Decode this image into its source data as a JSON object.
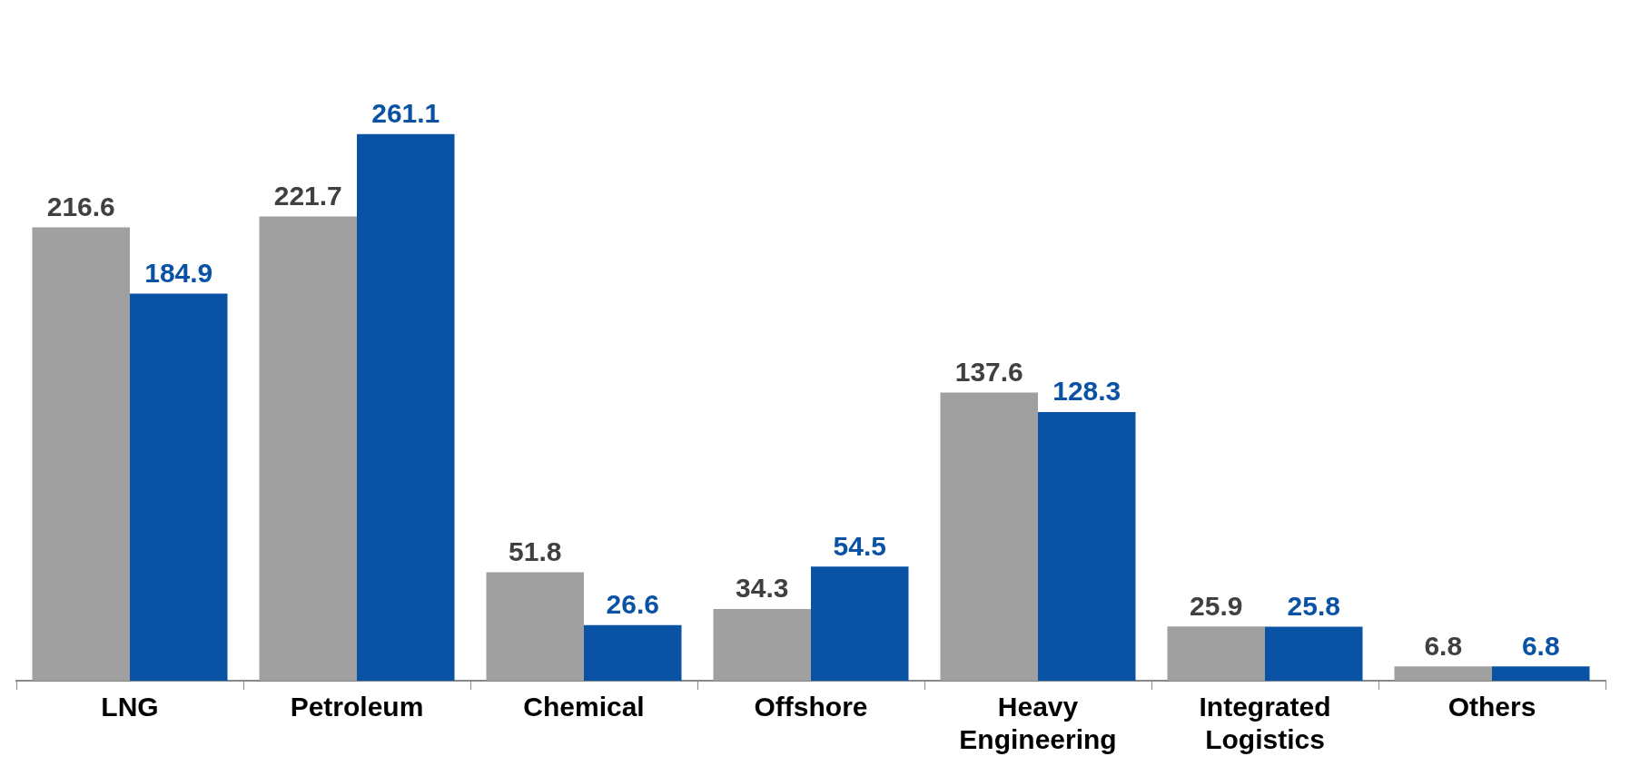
{
  "chart_data": {
    "type": "bar",
    "categories": [
      "LNG",
      "Petroleum",
      "Chemical",
      "Offshore",
      "Heavy Engineering",
      "Integrated Logistics",
      "Others"
    ],
    "series": [
      {
        "color": "#a0a0a0",
        "values": [
          216.6,
          221.7,
          51.8,
          34.3,
          137.6,
          25.9,
          6.8
        ]
      },
      {
        "color": "#0a52a3",
        "values": [
          184.9,
          261.1,
          26.6,
          54.5,
          128.3,
          25.8,
          6.8
        ]
      }
    ],
    "data_labels": true,
    "grid": false,
    "legend": false
  }
}
